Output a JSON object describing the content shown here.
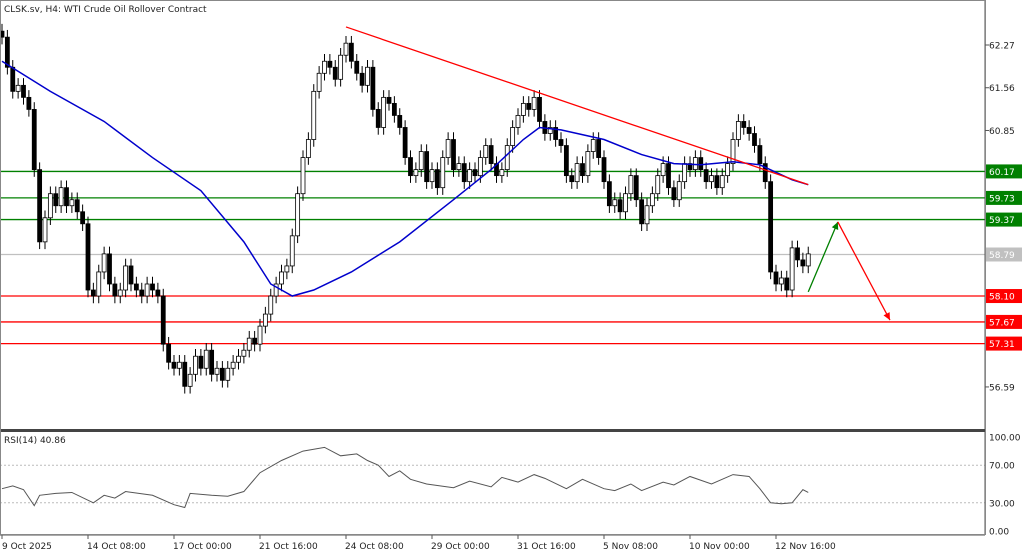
{
  "header": {
    "title": "CLSK.sv, H4:  WTI Crude Oil Rollover Contract"
  },
  "rsi_panel": {
    "label": "RSI(14) 40.86",
    "ticks": [
      "100.00",
      "70.00",
      "30.00",
      "0.00"
    ]
  },
  "chart_data": {
    "type": "candlestick",
    "title": "CLSK.sv, H4:  WTI Crude Oil Rollover Contract",
    "ylim": [
      56.2,
      62.95
    ],
    "price_ticks": [
      "62.27",
      "61.56",
      "60.85",
      "56.59"
    ],
    "time_ticks": [
      {
        "bar": 0,
        "label": "9 Oct 2025"
      },
      {
        "bar": 16,
        "label": "14 Oct 08:00"
      },
      {
        "bar": 32,
        "label": "17 Oct 00:00"
      },
      {
        "bar": 48,
        "label": "21 Oct 16:00"
      },
      {
        "bar": 64,
        "label": "24 Oct 08:00"
      },
      {
        "bar": 80,
        "label": "29 Oct 00:00"
      },
      {
        "bar": 96,
        "label": "31 Oct 16:00"
      },
      {
        "bar": 112,
        "label": "5 Nov 08:00"
      },
      {
        "bar": 128,
        "label": "10 Nov 00:00"
      },
      {
        "bar": 144,
        "label": "12 Nov 16:00"
      }
    ],
    "closes": [
      62.4,
      61.9,
      61.5,
      61.6,
      61.4,
      61.2,
      60.2,
      59.0,
      59.4,
      59.8,
      59.6,
      59.9,
      59.6,
      59.7,
      59.5,
      59.3,
      58.2,
      58.1,
      58.5,
      58.8,
      58.3,
      58.1,
      58.2,
      58.6,
      58.3,
      58.2,
      58.1,
      58.3,
      58.2,
      58.1,
      57.3,
      57.0,
      56.9,
      57.0,
      56.6,
      56.8,
      57.1,
      56.9,
      57.2,
      56.8,
      56.9,
      56.7,
      56.9,
      57.0,
      57.1,
      57.2,
      57.4,
      57.3,
      57.6,
      57.8,
      58.1,
      58.3,
      58.5,
      58.6,
      59.1,
      59.8,
      60.4,
      60.7,
      61.5,
      61.8,
      62.0,
      61.9,
      61.7,
      62.1,
      62.3,
      62.0,
      61.8,
      61.6,
      61.9,
      61.2,
      60.9,
      61.4,
      61.3,
      61.1,
      60.9,
      60.4,
      60.1,
      60.2,
      60.5,
      60.0,
      60.2,
      59.9,
      60.4,
      60.7,
      60.2,
      60.3,
      60.0,
      60.2,
      60.1,
      60.4,
      60.6,
      60.3,
      60.1,
      60.2,
      60.6,
      60.9,
      61.1,
      61.3,
      61.2,
      61.4,
      61.0,
      60.8,
      60.9,
      60.7,
      60.6,
      60.1,
      60.0,
      60.3,
      60.1,
      60.5,
      60.7,
      60.4,
      60.0,
      59.6,
      59.7,
      59.5,
      59.8,
      60.1,
      59.7,
      59.3,
      59.6,
      59.8,
      60.1,
      60.3,
      59.9,
      59.7,
      60.0,
      60.3,
      60.2,
      60.4,
      60.2,
      60.0,
      60.1,
      59.9,
      60.1,
      60.3,
      60.7,
      61.0,
      60.9,
      60.8,
      60.6,
      60.3,
      60.0,
      58.5,
      58.3,
      58.4,
      58.2,
      58.9,
      58.7,
      58.6,
      58.8
    ],
    "moving_average": [
      [
        0,
        62.0
      ],
      [
        9,
        61.5
      ],
      [
        19,
        61.0
      ],
      [
        28,
        60.4
      ],
      [
        37,
        59.85
      ],
      [
        45,
        59.0
      ],
      [
        50,
        58.3
      ],
      [
        54,
        58.1
      ],
      [
        58,
        58.2
      ],
      [
        65,
        58.5
      ],
      [
        74,
        59.0
      ],
      [
        84,
        59.7
      ],
      [
        91,
        60.2
      ],
      [
        97,
        60.7
      ],
      [
        100,
        60.9
      ],
      [
        104,
        60.86
      ],
      [
        112,
        60.7
      ],
      [
        119,
        60.45
      ],
      [
        125,
        60.3
      ],
      [
        130,
        60.28
      ],
      [
        136,
        60.33
      ],
      [
        141,
        60.28
      ],
      [
        147,
        60.03
      ],
      [
        150,
        59.95
      ]
    ],
    "levels": [
      {
        "price": 60.17,
        "label": "60.17",
        "color": "#008000"
      },
      {
        "price": 59.73,
        "label": "59.73",
        "color": "#008000"
      },
      {
        "price": 59.37,
        "label": "59.37",
        "color": "#008000"
      },
      {
        "price": 58.79,
        "label": "58.79",
        "color": "#c0c0c0"
      },
      {
        "price": 58.1,
        "label": "58.10",
        "color": "#ff0000"
      },
      {
        "price": 57.67,
        "label": "57.67",
        "color": "#ff0000"
      },
      {
        "price": 57.31,
        "label": "57.31",
        "color": "#ff0000"
      }
    ],
    "trendline": {
      "from": [
        64,
        62.57
      ],
      "to": [
        150,
        59.95
      ],
      "color": "#ff0000"
    },
    "arrows": [
      {
        "from": [
          150,
          58.17
        ],
        "to": [
          155.5,
          59.33
        ],
        "color": "#008000"
      },
      {
        "from": [
          155.5,
          59.33
        ],
        "to": [
          165.2,
          57.7
        ],
        "color": "#ff0000"
      }
    ],
    "rsi": {
      "period": 14,
      "ylim": [
        0,
        100
      ],
      "levels": [
        70,
        30
      ],
      "values": [
        [
          0,
          45
        ],
        [
          2,
          48
        ],
        [
          4,
          44
        ],
        [
          6,
          27
        ],
        [
          7,
          38
        ],
        [
          10,
          40
        ],
        [
          13,
          41
        ],
        [
          17,
          30
        ],
        [
          19,
          38
        ],
        [
          21,
          35
        ],
        [
          23,
          42
        ],
        [
          28,
          38
        ],
        [
          32,
          28
        ],
        [
          34,
          25
        ],
        [
          35,
          40
        ],
        [
          39,
          38
        ],
        [
          42,
          37
        ],
        [
          45,
          42
        ],
        [
          48,
          62
        ],
        [
          52,
          75
        ],
        [
          56,
          85
        ],
        [
          60,
          89
        ],
        [
          63,
          80
        ],
        [
          66,
          82
        ],
        [
          68,
          75
        ],
        [
          70,
          70
        ],
        [
          72,
          58
        ],
        [
          74,
          64
        ],
        [
          76,
          55
        ],
        [
          79,
          50
        ],
        [
          84,
          46
        ],
        [
          87,
          53
        ],
        [
          91,
          47
        ],
        [
          93,
          57
        ],
        [
          96,
          52
        ],
        [
          99,
          60
        ],
        [
          101,
          56
        ],
        [
          105,
          45
        ],
        [
          108,
          55
        ],
        [
          112,
          45
        ],
        [
          114,
          43
        ],
        [
          117,
          50
        ],
        [
          119,
          43
        ],
        [
          123,
          52
        ],
        [
          125,
          49
        ],
        [
          128,
          58
        ],
        [
          132,
          50
        ],
        [
          136,
          60
        ],
        [
          139,
          58
        ],
        [
          141,
          45
        ],
        [
          143,
          30
        ],
        [
          145,
          29
        ],
        [
          147,
          30
        ],
        [
          149,
          44
        ],
        [
          150,
          41
        ]
      ]
    },
    "colors": {
      "ma": "#0000cc",
      "bull_body": "#ffffff",
      "bear_body": "#000000"
    }
  }
}
